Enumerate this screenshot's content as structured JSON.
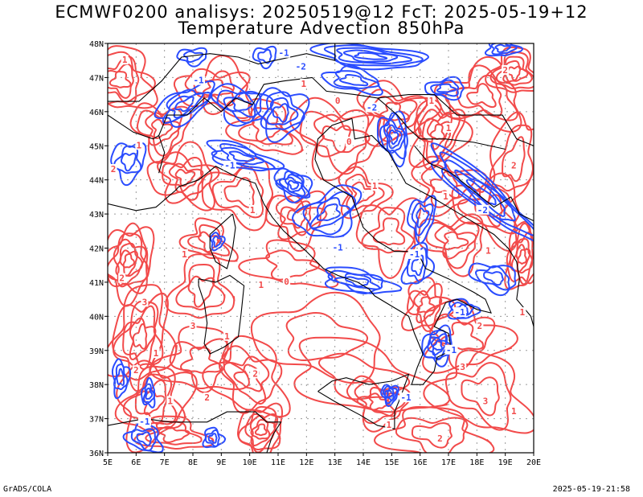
{
  "title_line1": "ECMWF0200 analisys: 20250519@12 FcT: 2025-05-19+12",
  "title_line2": "Temperature Advection 850hPa",
  "footer_left": "GrADS/COLA",
  "footer_right": "2025-05-19-21:58",
  "map": {
    "lon_labels": [
      "5E",
      "6E",
      "7E",
      "8E",
      "9E",
      "10E",
      "11E",
      "12E",
      "13E",
      "14E",
      "15E",
      "16E",
      "17E",
      "18E",
      "19E",
      "20E"
    ],
    "lat_labels": [
      "36N",
      "37N",
      "38N",
      "39N",
      "40N",
      "41N",
      "42N",
      "43N",
      "44N",
      "45N",
      "46N",
      "47N",
      "48N"
    ],
    "lon_range": [
      5,
      20
    ],
    "lat_range": [
      36,
      48
    ],
    "grid": true,
    "colors": {
      "warm": "#f24a4a",
      "cold": "#2a4cff",
      "coast": "#000000",
      "grid": "#9a9a9a"
    },
    "contour_labels": [
      {
        "t": "1",
        "c": "warm",
        "lon": 5.6,
        "lat": 47.5
      },
      {
        "t": "2",
        "c": "warm",
        "lon": 5.2,
        "lat": 44.3
      },
      {
        "t": "1",
        "c": "warm",
        "lon": 6.1,
        "lat": 45.0
      },
      {
        "t": "2",
        "c": "warm",
        "lon": 5.5,
        "lat": 41.1
      },
      {
        "t": "3",
        "c": "warm",
        "lon": 6.3,
        "lat": 40.4
      },
      {
        "t": "1",
        "c": "warm",
        "lon": 6.7,
        "lat": 38.9
      },
      {
        "t": "2",
        "c": "warm",
        "lon": 6.0,
        "lat": 38.4
      },
      {
        "t": "1",
        "c": "warm",
        "lon": 7.2,
        "lat": 37.5
      },
      {
        "t": "1",
        "c": "warm",
        "lon": 7.7,
        "lat": 41.8
      },
      {
        "t": "2",
        "c": "warm",
        "lon": 8.5,
        "lat": 37.6
      },
      {
        "t": "2",
        "c": "warm",
        "lon": 10.2,
        "lat": 38.3
      },
      {
        "t": "3",
        "c": "warm",
        "lon": 8.0,
        "lat": 39.7
      },
      {
        "t": "1",
        "c": "warm",
        "lon": 9.2,
        "lat": 39.4
      },
      {
        "t": "0",
        "c": "warm",
        "lon": 11.3,
        "lat": 41.0
      },
      {
        "t": "1",
        "c": "warm",
        "lon": 10.4,
        "lat": 40.9
      },
      {
        "t": "-1",
        "c": "cold",
        "lon": 9.3,
        "lat": 44.4
      },
      {
        "t": "-1",
        "c": "cold",
        "lon": 8.2,
        "lat": 46.9
      },
      {
        "t": "-1",
        "c": "cold",
        "lon": 11.2,
        "lat": 47.7
      },
      {
        "t": "-2",
        "c": "cold",
        "lon": 11.8,
        "lat": 47.3
      },
      {
        "t": "-1",
        "c": "cold",
        "lon": 13.1,
        "lat": 42.0
      },
      {
        "t": "-1",
        "c": "cold",
        "lon": 15.8,
        "lat": 41.8
      },
      {
        "t": "-1",
        "c": "cold",
        "lon": 17.4,
        "lat": 40.1
      },
      {
        "t": "-2",
        "c": "cold",
        "lon": 14.3,
        "lat": 46.1
      },
      {
        "t": "-1",
        "c": "cold",
        "lon": 17.1,
        "lat": 39.0
      },
      {
        "t": "-1",
        "c": "cold",
        "lon": 6.3,
        "lat": 36.9
      },
      {
        "t": "-1",
        "c": "cold",
        "lon": 15.5,
        "lat": 37.6
      },
      {
        "t": "0",
        "c": "warm",
        "lon": 13.5,
        "lat": 45.1
      },
      {
        "t": "1",
        "c": "warm",
        "lon": 14.4,
        "lat": 43.8
      },
      {
        "t": "1",
        "c": "warm",
        "lon": 16.9,
        "lat": 43.5
      },
      {
        "t": "-2",
        "c": "cold",
        "lon": 18.2,
        "lat": 43.1
      },
      {
        "t": "1",
        "c": "warm",
        "lon": 18.4,
        "lat": 41.9
      },
      {
        "t": "2",
        "c": "warm",
        "lon": 18.1,
        "lat": 39.7
      },
      {
        "t": "3",
        "c": "warm",
        "lon": 17.5,
        "lat": 38.5
      },
      {
        "t": "3",
        "c": "warm",
        "lon": 18.3,
        "lat": 37.5
      },
      {
        "t": "1",
        "c": "warm",
        "lon": 19.3,
        "lat": 37.2
      },
      {
        "t": "2",
        "c": "warm",
        "lon": 16.7,
        "lat": 36.4
      },
      {
        "t": "1",
        "c": "warm",
        "lon": 14.9,
        "lat": 36.8
      },
      {
        "t": "1",
        "c": "warm",
        "lon": 19.6,
        "lat": 40.1
      },
      {
        "t": "2",
        "c": "warm",
        "lon": 19.3,
        "lat": 44.4
      },
      {
        "t": "1",
        "c": "warm",
        "lon": 16.4,
        "lat": 46.3
      },
      {
        "t": "1",
        "c": "warm",
        "lon": 17.0,
        "lat": 45.5
      },
      {
        "t": "2",
        "c": "warm",
        "lon": 19.0,
        "lat": 47.2
      },
      {
        "t": "1",
        "c": "warm",
        "lon": 11.9,
        "lat": 46.8
      },
      {
        "t": "0",
        "c": "warm",
        "lon": 13.1,
        "lat": 46.3
      },
      {
        "t": "1",
        "c": "warm",
        "lon": 10.1,
        "lat": 43.1
      }
    ]
  }
}
